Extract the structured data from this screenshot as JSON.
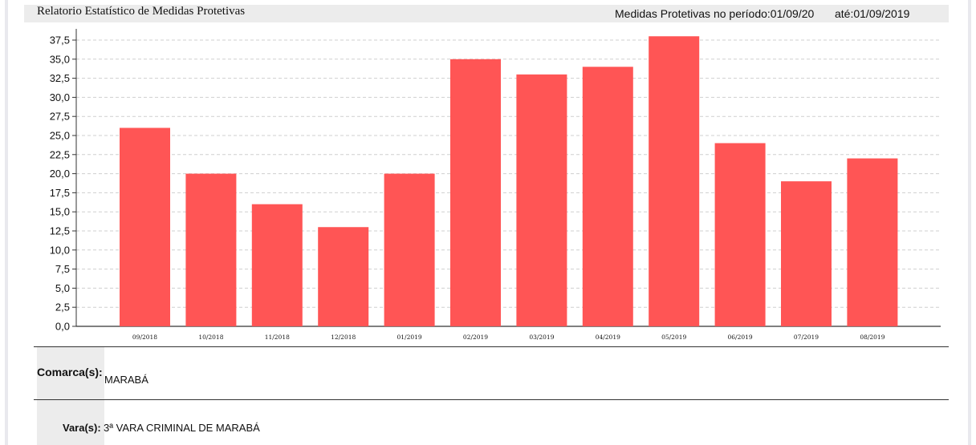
{
  "header": {
    "title": "Relatorio Estatístico de Medidas Protetivas",
    "period_label": "Medidas Protetivas no período:01/09/20",
    "period_end": "até:01/09/2019"
  },
  "chart_data": {
    "type": "bar",
    "categories": [
      "09/2018",
      "10/2018",
      "11/2018",
      "12/2018",
      "01/2019",
      "02/2019",
      "03/2019",
      "04/2019",
      "05/2019",
      "06/2019",
      "07/2019",
      "08/2019"
    ],
    "values": [
      26,
      20,
      16,
      13,
      20,
      35,
      33,
      34,
      38,
      24,
      19,
      22
    ],
    "ylim": [
      0,
      37.5
    ],
    "yticks": [
      "0,0",
      "2,5",
      "5,0",
      "7,5",
      "10,0",
      "12,5",
      "15,0",
      "17,5",
      "20,0",
      "22,5",
      "25,0",
      "27,5",
      "30,0",
      "32,5",
      "35,0",
      "37,5"
    ],
    "bar_color": "#ff5555",
    "grid": true,
    "title": "",
    "xlabel": "",
    "ylabel": ""
  },
  "filters": {
    "comarca_label": "Comarca(s):",
    "comarca_value": "MARABÁ",
    "vara_label": "Vara(s):",
    "vara_value": "3ª VARA CRIMINAL DE MARABÁ"
  }
}
